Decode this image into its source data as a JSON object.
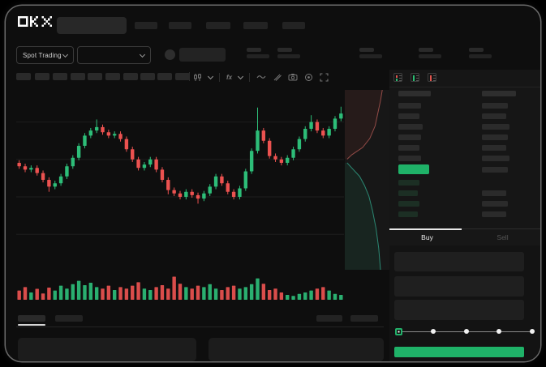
{
  "brand": "OKX",
  "market_bar": {
    "market_selector_label": "Spot Trading"
  },
  "chart_toolbar": {
    "fx_label": "fx",
    "icons": [
      "candle-style-icon",
      "chevron-down-icon",
      "indicators-fx-icon",
      "chevron-down-icon",
      "line-tool-icon",
      "ruler-icon",
      "camera-icon",
      "settings-icon",
      "fullscreen-icon"
    ]
  },
  "order_book": {
    "view_icons": [
      "book-both-icon",
      "book-bids-icon",
      "book-asks-icon"
    ],
    "rows": [
      {
        "type": "header",
        "left_w": 40,
        "right_w": 42
      },
      {
        "type": "ask",
        "left_w": 28,
        "right_w": 32
      },
      {
        "type": "ask",
        "left_w": 26,
        "right_w": 30
      },
      {
        "type": "ask",
        "left_w": 30,
        "right_w": 34
      },
      {
        "type": "ask",
        "left_w": 28,
        "right_w": 32
      },
      {
        "type": "ask",
        "left_w": 26,
        "right_w": 30
      },
      {
        "type": "ask",
        "left_w": 28,
        "right_w": 34
      },
      {
        "type": "price",
        "left_w": 38,
        "right_w": 32
      },
      {
        "type": "bid",
        "left_w": 26,
        "right_w": 0
      },
      {
        "type": "bid",
        "left_w": 24,
        "right_w": 30
      },
      {
        "type": "bid",
        "left_w": 26,
        "right_w": 32
      },
      {
        "type": "bid",
        "left_w": 24,
        "right_w": 30
      }
    ],
    "tabs": [
      {
        "label": "Buy",
        "active": true
      },
      {
        "label": "Sell",
        "active": false
      }
    ]
  },
  "trade_form": {
    "fields": 3,
    "slider_stops": 5,
    "slider_active_index": 0
  },
  "colors": {
    "up": "#2dbd78",
    "down": "#ec5250",
    "accent_green": "#1fb268",
    "depth_ask_line": "#a85550",
    "depth_bid_line": "#2f9b82",
    "depth_ask_fill": "rgba(220,80,70,0.08)",
    "depth_bid_fill": "rgba(46,189,133,0.09)",
    "grid": "#1d1d1d"
  },
  "chart_data": {
    "type": "candlestick",
    "ylim": [
      0,
      100
    ],
    "candles": [
      [
        60,
        58,
        61.5,
        56.5
      ],
      [
        58,
        56,
        59.5,
        54.5
      ],
      [
        56,
        57,
        58.5,
        54.5
      ],
      [
        57,
        54,
        58.5,
        52.5
      ],
      [
        54,
        50,
        55.5,
        48.5
      ],
      [
        50,
        46,
        51.5,
        43
      ],
      [
        46,
        48,
        49.5,
        44.5
      ],
      [
        48,
        52,
        53.5,
        46.5
      ],
      [
        52,
        58,
        59.5,
        50.5
      ],
      [
        58,
        63,
        64.5,
        56.5
      ],
      [
        63,
        70,
        71.5,
        61.5
      ],
      [
        70,
        76,
        77.5,
        68.5
      ],
      [
        76,
        79,
        80.5,
        74.5
      ],
      [
        79,
        81,
        85.5,
        77.5
      ],
      [
        81,
        78,
        82.5,
        76.5
      ],
      [
        78,
        76,
        79.5,
        74.5
      ],
      [
        76,
        77,
        78.5,
        74.5
      ],
      [
        77,
        74,
        78.5,
        72.5
      ],
      [
        74,
        68,
        75.5,
        66.5
      ],
      [
        68,
        62,
        69.5,
        60.5
      ],
      [
        62,
        57,
        63.5,
        55.5
      ],
      [
        57,
        59,
        60.5,
        55.5
      ],
      [
        59,
        62,
        63.5,
        57.5
      ],
      [
        62,
        56,
        63.5,
        54.5
      ],
      [
        56,
        50,
        57.5,
        48.5
      ],
      [
        50,
        44,
        51.5,
        41.5
      ],
      [
        44,
        42,
        45.5,
        40.5
      ],
      [
        42,
        40,
        43.5,
        38.5
      ],
      [
        40,
        43,
        44.5,
        38.5
      ],
      [
        43,
        41,
        44.5,
        39.5
      ],
      [
        41,
        39,
        42.5,
        36
      ],
      [
        39,
        42,
        43.5,
        37.5
      ],
      [
        42,
        46,
        47.5,
        40.5
      ],
      [
        46,
        52,
        53.5,
        44.5
      ],
      [
        52,
        48,
        53.5,
        46.5
      ],
      [
        48,
        43,
        49.5,
        41.5
      ],
      [
        43,
        40,
        44.5,
        38.5
      ],
      [
        40,
        45,
        46.5,
        38.5
      ],
      [
        45,
        55,
        56.5,
        43.5
      ],
      [
        55,
        67,
        68.5,
        53.5
      ],
      [
        67,
        79,
        92.5,
        65.5
      ],
      [
        79,
        73,
        80.5,
        71.5
      ],
      [
        73,
        64,
        74.5,
        62.5
      ],
      [
        64,
        62,
        65.5,
        60.5
      ],
      [
        62,
        60,
        63.5,
        58.5
      ],
      [
        60,
        63,
        64.5,
        58.5
      ],
      [
        63,
        68,
        69.5,
        61.5
      ],
      [
        68,
        74,
        75.5,
        66.5
      ],
      [
        74,
        80,
        81.5,
        72.5
      ],
      [
        80,
        84,
        88,
        78.5
      ],
      [
        84,
        79,
        85.5,
        77.5
      ],
      [
        79,
        76,
        80.5,
        74.5
      ],
      [
        76,
        80,
        81.5,
        74.5
      ],
      [
        80,
        86,
        87.5,
        78.5
      ],
      [
        86,
        89,
        93,
        84.5
      ]
    ],
    "volume": [
      38,
      52,
      30,
      45,
      26,
      50,
      38,
      58,
      46,
      64,
      78,
      60,
      70,
      52,
      46,
      58,
      40,
      52,
      46,
      58,
      72,
      46,
      40,
      52,
      60,
      46,
      95,
      66,
      52,
      46,
      58,
      52,
      64,
      46,
      40,
      52,
      58,
      46,
      52,
      64,
      88,
      66,
      40,
      46,
      30,
      20,
      16,
      24,
      30,
      38,
      46,
      52,
      38,
      24,
      20
    ],
    "depth": {
      "asks": [
        [
          0.84,
          0
        ],
        [
          0.8,
          0.06
        ],
        [
          0.74,
          0.13
        ],
        [
          0.68,
          0.2
        ],
        [
          0.56,
          0.27
        ],
        [
          0.4,
          0.32
        ],
        [
          0.16,
          0.36
        ],
        [
          0.05,
          0.385
        ]
      ],
      "bids": [
        [
          0.05,
          0.405
        ],
        [
          0.18,
          0.44
        ],
        [
          0.33,
          0.48
        ],
        [
          0.44,
          0.53
        ],
        [
          0.54,
          0.59
        ],
        [
          0.62,
          0.67
        ],
        [
          0.7,
          0.77
        ],
        [
          0.76,
          0.88
        ],
        [
          0.8,
          1
        ]
      ]
    }
  }
}
